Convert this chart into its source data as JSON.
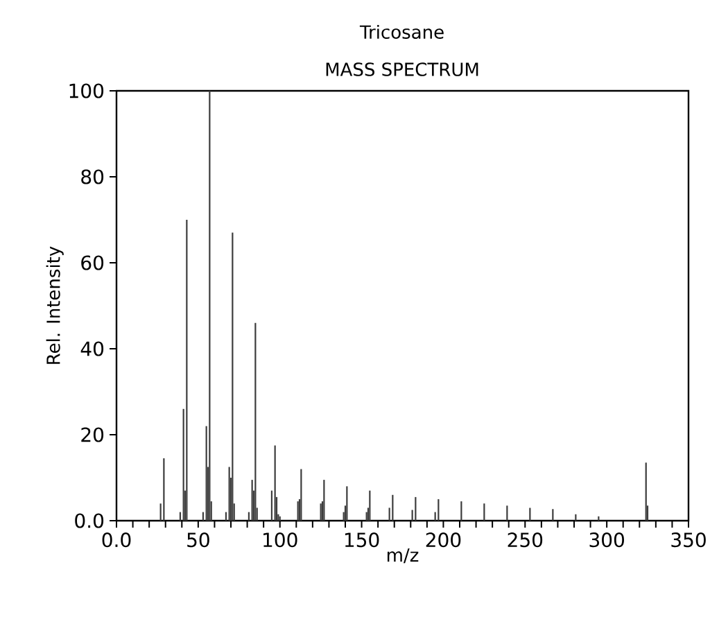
{
  "chart_data": {
    "type": "bar",
    "title": "Tricosane",
    "subtitle": "MASS SPECTRUM",
    "xlabel": "m/z",
    "ylabel": "Rel. Intensity",
    "x": [
      27,
      29,
      39,
      41,
      42,
      43,
      53,
      55,
      56,
      57,
      58,
      67,
      69,
      70,
      71,
      72,
      81,
      83,
      84,
      85,
      86,
      95,
      97,
      98,
      99,
      100,
      111,
      112,
      113,
      125,
      126,
      127,
      139,
      140,
      141,
      153,
      154,
      155,
      167,
      169,
      181,
      183,
      195,
      197,
      211,
      225,
      239,
      253,
      267,
      281,
      295,
      324,
      325
    ],
    "values": [
      4,
      14.5,
      2,
      26,
      7,
      70,
      2,
      22,
      12.5,
      100,
      4.5,
      2,
      12.5,
      10,
      67,
      4,
      2,
      9.5,
      7,
      46,
      3,
      7,
      17.5,
      5.5,
      1.5,
      1,
      4.5,
      5,
      12,
      4,
      4.5,
      9.5,
      2,
      3.5,
      8,
      2,
      3,
      7,
      3,
      6,
      2.5,
      5.5,
      2,
      5,
      4.5,
      4,
      3.5,
      3,
      2.7,
      1.5,
      1,
      13.5,
      3.5
    ],
    "color": "#3c3c3c",
    "xlim": [
      0,
      350
    ],
    "ylim": [
      0,
      100
    ],
    "xticks": [
      {
        "value": 0,
        "label": "0.0"
      },
      {
        "value": 10,
        "label": null
      },
      {
        "value": 20,
        "label": null
      },
      {
        "value": 30,
        "label": null
      },
      {
        "value": 40,
        "label": null
      },
      50,
      {
        "value": 60,
        "label": null
      },
      {
        "value": 70,
        "label": null
      },
      {
        "value": 80,
        "label": null
      },
      {
        "value": 90,
        "label": null
      },
      100,
      {
        "value": 110,
        "label": null
      },
      {
        "value": 120,
        "label": null
      },
      {
        "value": 130,
        "label": null
      },
      {
        "value": 140,
        "label": null
      },
      150,
      {
        "value": 160,
        "label": null
      },
      {
        "value": 170,
        "label": null
      },
      {
        "value": 180,
        "label": null
      },
      {
        "value": 190,
        "label": null
      },
      200,
      {
        "value": 210,
        "label": null
      },
      {
        "value": 220,
        "label": null
      },
      {
        "value": 230,
        "label": null
      },
      {
        "value": 240,
        "label": null
      },
      250,
      {
        "value": 260,
        "label": null
      },
      {
        "value": 270,
        "label": null
      },
      {
        "value": 280,
        "label": null
      },
      {
        "value": 290,
        "label": null
      },
      300,
      {
        "value": 310,
        "label": null
      },
      {
        "value": 320,
        "label": null
      },
      {
        "value": 330,
        "label": null
      },
      {
        "value": 340,
        "label": null
      },
      350
    ],
    "yticks": [
      {
        "value": 0,
        "label": "0.0"
      },
      20,
      40,
      60,
      80,
      100
    ]
  }
}
